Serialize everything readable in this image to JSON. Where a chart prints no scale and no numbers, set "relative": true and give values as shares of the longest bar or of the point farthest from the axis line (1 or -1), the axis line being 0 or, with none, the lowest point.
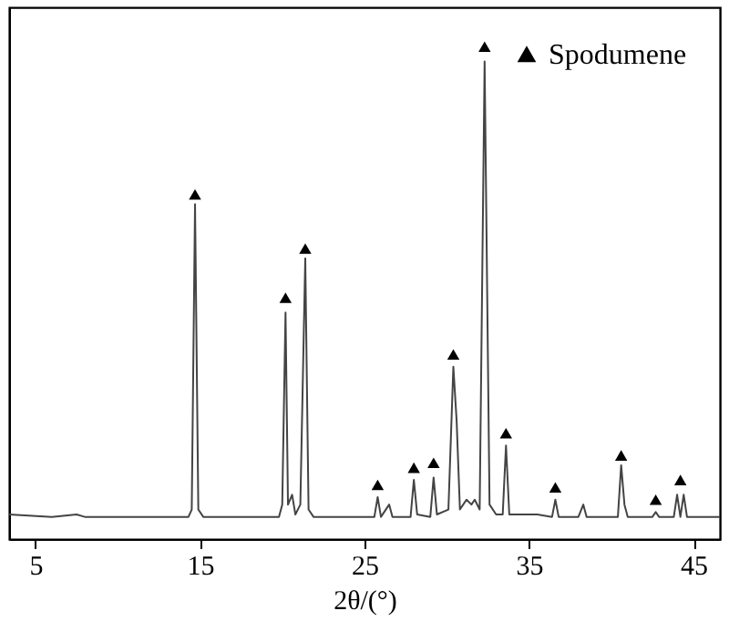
{
  "chart_data": {
    "type": "line",
    "xlabel": "2θ/(°)",
    "relative": true,
    "xlim": [
      3.4,
      46.6
    ],
    "xticks": [
      5,
      15,
      25,
      35,
      45
    ],
    "tick_labels": "x",
    "grid": false,
    "legend": "top right",
    "line_style": "solid",
    "series": [
      {
        "color": "#444444",
        "x": [
          3.4,
          6,
          7.5,
          8,
          14.3,
          14.5,
          14.7,
          14.9,
          15.2,
          19.8,
          20.0,
          20.2,
          20.35,
          20.6,
          20.8,
          21.1,
          21.4,
          21.6,
          21.9,
          25.6,
          25.8,
          26.0,
          26.5,
          26.7,
          27.8,
          28.0,
          28.2,
          29.0,
          29.2,
          29.4,
          30.1,
          30.4,
          30.6,
          30.8,
          31.2,
          31.5,
          31.7,
          32.0,
          32.3,
          32.6,
          33.0,
          33.4,
          33.6,
          33.8,
          35.5,
          36.4,
          36.6,
          36.8,
          38.0,
          38.3,
          38.5,
          40.4,
          40.6,
          40.8,
          41.0,
          42.5,
          42.7,
          42.9,
          43.8,
          44.0,
          44.2,
          44.4,
          44.6,
          46.6
        ],
        "values": [
          0.05,
          0.045,
          0.05,
          0.045,
          0.045,
          0.06,
          0.68,
          0.06,
          0.045,
          0.045,
          0.07,
          0.46,
          0.07,
          0.09,
          0.05,
          0.07,
          0.57,
          0.06,
          0.045,
          0.045,
          0.085,
          0.045,
          0.07,
          0.045,
          0.045,
          0.12,
          0.05,
          0.045,
          0.125,
          0.05,
          0.06,
          0.35,
          0.24,
          0.06,
          0.08,
          0.07,
          0.08,
          0.06,
          0.97,
          0.07,
          0.05,
          0.05,
          0.19,
          0.05,
          0.05,
          0.045,
          0.08,
          0.045,
          0.045,
          0.07,
          0.045,
          0.045,
          0.15,
          0.07,
          0.045,
          0.045,
          0.055,
          0.045,
          0.045,
          0.09,
          0.045,
          0.09,
          0.045,
          0.045
        ]
      },
      {
        "name": "Spodumene",
        "type": "scatter",
        "marker": "triangle",
        "color": "#000000",
        "x": [
          14.7,
          20.2,
          21.4,
          25.8,
          28.0,
          29.2,
          30.4,
          32.3,
          33.6,
          36.6,
          40.6,
          42.7,
          44.2
        ],
        "values": [
          0.7,
          0.49,
          0.59,
          0.11,
          0.145,
          0.155,
          0.375,
          1.0,
          0.215,
          0.105,
          0.17,
          0.08,
          0.12
        ]
      }
    ]
  }
}
